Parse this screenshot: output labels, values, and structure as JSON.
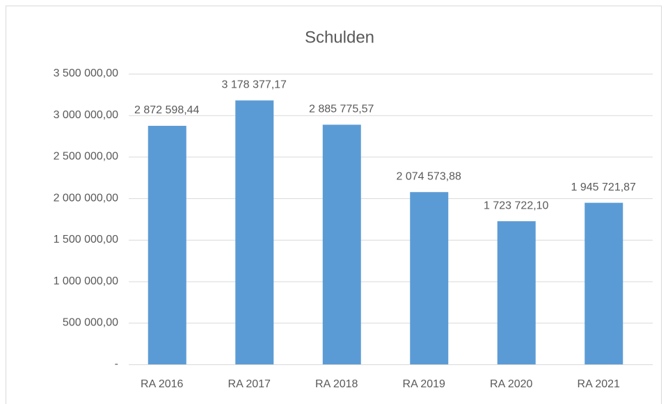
{
  "chart_data": {
    "type": "bar",
    "title": "Schulden",
    "categories": [
      "RA 2016",
      "RA 2017",
      "RA 2018",
      "RA 2019",
      "RA 2020",
      "RA 2021"
    ],
    "values": [
      2872598.44,
      3178377.17,
      2885775.57,
      2074573.88,
      1723722.1,
      1945721.87
    ],
    "value_labels": [
      "2 872 598,44",
      "3 178 377,17",
      "2 885 775,57",
      "2 074 573,88",
      "1 723 722,10",
      "1 945 721,87"
    ],
    "color": "#5b9bd5",
    "ylim": [
      0,
      3500000
    ],
    "yticks": [
      {
        "value": 0,
        "label": "-"
      },
      {
        "value": 500000,
        "label": "500 000,00"
      },
      {
        "value": 1000000,
        "label": "1 000 000,00"
      },
      {
        "value": 1500000,
        "label": "1 500 000,00"
      },
      {
        "value": 2000000,
        "label": "2 000 000,00"
      },
      {
        "value": 2500000,
        "label": "2 500 000,00"
      },
      {
        "value": 3000000,
        "label": "3 000 000,00"
      },
      {
        "value": 3500000,
        "label": "3 500 000,00"
      }
    ],
    "grid": true
  }
}
